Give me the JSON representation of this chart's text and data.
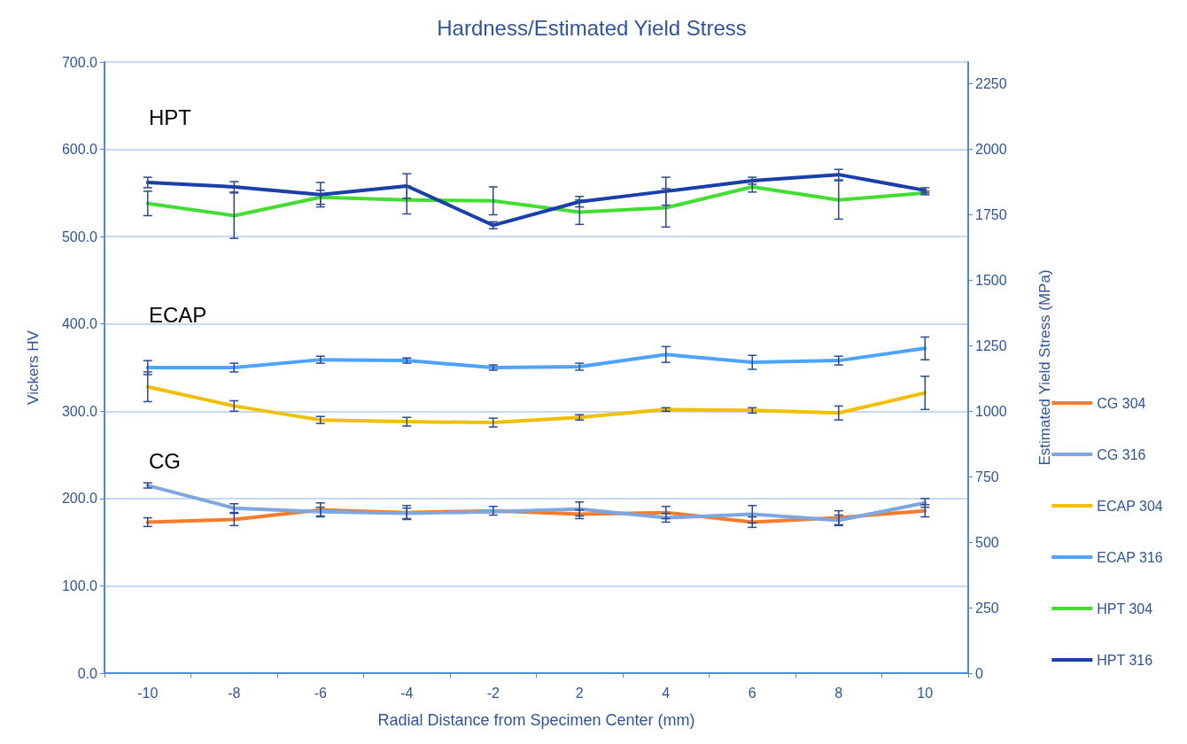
{
  "chart_data": {
    "type": "line",
    "title": "Hardness/Estimated Yield Stress",
    "xlabel": "Radial Distance from Specimen Center (mm)",
    "ylabel": "Vickers HV",
    "y2label": "Estimated Yield Stress (MPa)",
    "categories": [
      "-10",
      "-8",
      "-6",
      "-4",
      "-2",
      "2",
      "4",
      "6",
      "8",
      "10"
    ],
    "series": [
      {
        "name": "CG 304",
        "color": "#f47c2c",
        "values": [
          173,
          176,
          187,
          184,
          186,
          182,
          184,
          173,
          178,
          186
        ],
        "errors": [
          5,
          7,
          8,
          8,
          5,
          5,
          7,
          6,
          8,
          7
        ]
      },
      {
        "name": "CG 316",
        "color": "#7ea6e0",
        "values": [
          215,
          189,
          185,
          183,
          185,
          188,
          178,
          182,
          175,
          195
        ],
        "errors": [
          3,
          5,
          5,
          6,
          null,
          8,
          5,
          10,
          6,
          5
        ]
      },
      {
        "name": "ECAP 304",
        "color": "#f0c000",
        "values": [
          328,
          306,
          290,
          288,
          287,
          293,
          302,
          301,
          298,
          321
        ],
        "errors": [
          17,
          6,
          4,
          5,
          5,
          3,
          2,
          3,
          8,
          19
        ]
      },
      {
        "name": "ECAP 316",
        "color": "#4da3ff",
        "values": [
          350,
          350,
          359,
          358,
          350,
          351,
          365,
          356,
          358,
          372
        ],
        "errors": [
          8,
          5,
          4,
          3,
          3,
          4,
          9,
          8,
          5,
          13
        ]
      },
      {
        "name": "HPT 304",
        "color": "#44dd33",
        "values": [
          538,
          524,
          545,
          542,
          541,
          528,
          533,
          557,
          542,
          550
        ],
        "errors": [
          14,
          26,
          8,
          16,
          16,
          14,
          22,
          6,
          22,
          2
        ]
      },
      {
        "name": "HPT 316",
        "color": "#1a3fa8",
        "values": [
          562,
          557,
          548,
          558,
          513,
          540,
          552,
          564,
          571,
          553
        ],
        "errors": [
          6,
          6,
          14,
          14,
          4,
          6,
          16,
          4,
          6,
          3
        ]
      }
    ],
    "ylim": [
      0,
      700
    ],
    "yticks": [
      {
        "value": 0,
        "label": "0.0"
      },
      {
        "value": 100,
        "label": "100.0"
      },
      {
        "value": 200,
        "label": "200.0"
      },
      {
        "value": 300,
        "label": "300.0"
      },
      {
        "value": 400,
        "label": "400.0"
      },
      {
        "value": 500,
        "label": "500.0"
      },
      {
        "value": 600,
        "label": "600.0"
      },
      {
        "value": 700,
        "label": "700.0"
      }
    ],
    "y2lim": [
      0,
      2333
    ],
    "y2ticks": [
      0,
      250,
      500,
      750,
      1000,
      1250,
      1500,
      1750,
      2000,
      2250
    ],
    "annotations": [
      "HPT",
      "ECAP",
      "CG"
    ],
    "grid": "y",
    "legend": "right",
    "marker": "none",
    "line_style": "solid"
  }
}
